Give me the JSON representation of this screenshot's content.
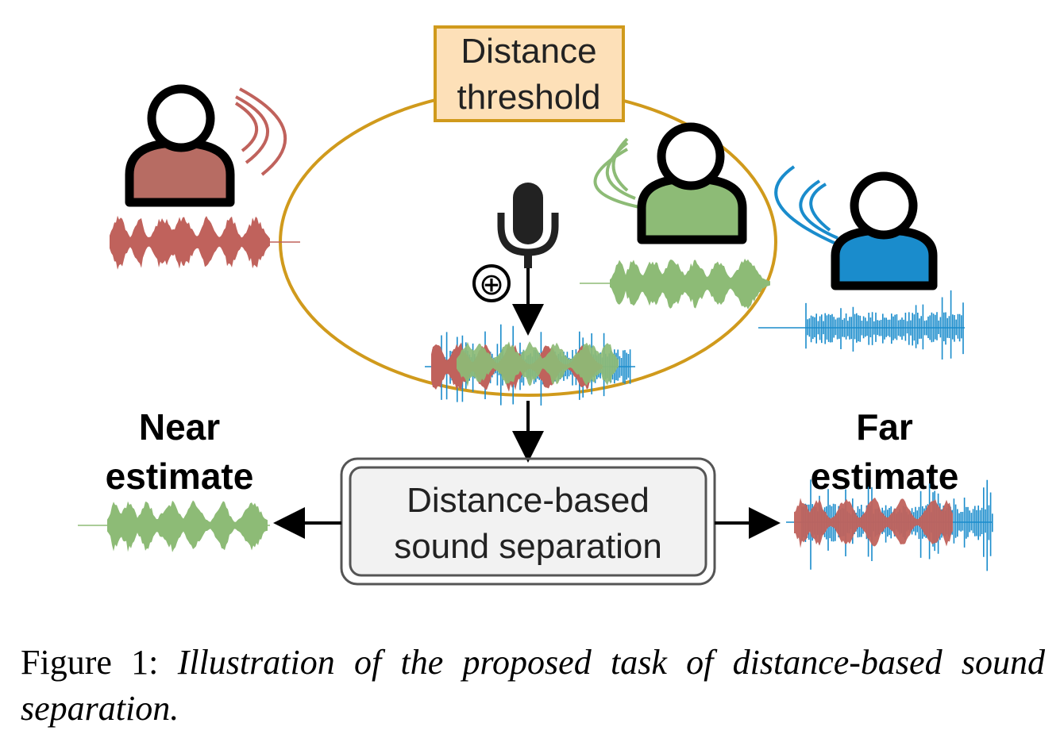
{
  "diagram": {
    "threshold_box": {
      "line1": "Distance",
      "line2": "threshold"
    },
    "separation_box": {
      "line1": "Distance-based",
      "line2": "sound separation"
    },
    "near_label": {
      "line1": "Near",
      "line2": "estimate"
    },
    "far_label": {
      "line1": "Far",
      "line2": "estimate"
    },
    "mix_symbol": "⊕",
    "colors": {
      "red_speaker": "#c0625c",
      "green_speaker": "#8dbb76",
      "blue_speaker": "#1a8ccc",
      "threshold_circle": "#d09a1c",
      "threshold_box_fill": "#fde0b8",
      "separation_box_fill": "#f2f2f2"
    },
    "icons": [
      "person-icon",
      "sound-waves-icon",
      "microphone-icon",
      "plus-circle-icon",
      "waveform-icon",
      "arrow-icon"
    ]
  },
  "caption": {
    "prefix": "Figure 1:",
    "text": "Illustration of the proposed task of distance-based sound separation."
  }
}
